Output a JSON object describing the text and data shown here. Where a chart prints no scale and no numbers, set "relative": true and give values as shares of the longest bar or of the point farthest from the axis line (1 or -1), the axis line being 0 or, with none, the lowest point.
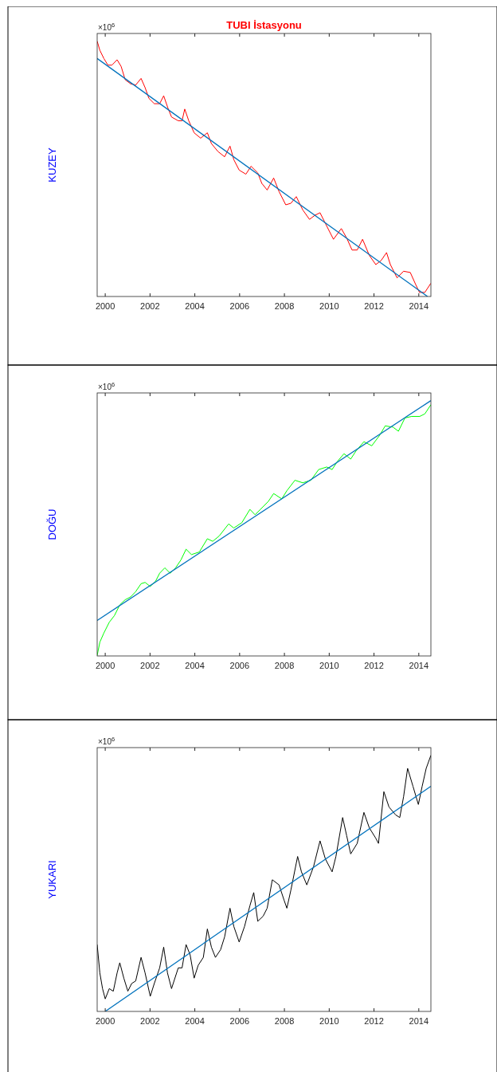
{
  "chart_data": [
    {
      "type": "line",
      "title": "TUBI İstasyonu",
      "ylabel": "KUZEY",
      "annotations": [
        "×10$^{6}$"
      ],
      "relative": true,
      "xlim": [
        1999.64,
        2014.54
      ],
      "xticks": [
        2000,
        2002,
        2004,
        2006,
        2008,
        2010,
        2012,
        2014
      ],
      "series": [
        {
          "color": "#ff0000",
          "x": [
            1999.64,
            1999.76,
            1999.94,
            2000.12,
            2000.3,
            2000.53,
            2000.71,
            2000.89,
            2001.13,
            2001.36,
            2001.6,
            2001.78,
            2001.95,
            2002.19,
            2002.43,
            2002.61,
            2002.79,
            2002.96,
            2003.26,
            2003.43,
            2003.55,
            2003.73,
            2003.97,
            2004.26,
            2004.56,
            2004.74,
            2005.03,
            2005.33,
            2005.57,
            2005.74,
            2005.98,
            2006.28,
            2006.51,
            2006.81,
            2006.99,
            2007.23,
            2007.52,
            2007.76,
            2008.06,
            2008.29,
            2008.53,
            2008.82,
            2009.12,
            2009.36,
            2009.59,
            2009.83,
            2010.19,
            2010.54,
            2010.78,
            2011.02,
            2011.25,
            2011.49,
            2011.79,
            2012.08,
            2012.32,
            2012.56,
            2012.73,
            2013.03,
            2013.32,
            2013.62,
            2013.86,
            2014.03,
            2014.27,
            2014.54
          ],
          "values": [
            1,
            0.964,
            0.932,
            0.906,
            0.906,
            0.927,
            0.901,
            0.849,
            0.833,
            0.828,
            0.854,
            0.818,
            0.776,
            0.755,
            0.755,
            0.786,
            0.74,
            0.703,
            0.688,
            0.688,
            0.734,
            0.688,
            0.641,
            0.62,
            0.641,
            0.599,
            0.568,
            0.547,
            0.589,
            0.536,
            0.495,
            0.479,
            0.51,
            0.484,
            0.443,
            0.417,
            0.464,
            0.411,
            0.359,
            0.365,
            0.391,
            0.339,
            0.302,
            0.318,
            0.328,
            0.286,
            0.224,
            0.266,
            0.229,
            0.182,
            0.182,
            0.224,
            0.161,
            0.125,
            0.141,
            0.172,
            0.125,
            0.073,
            0.099,
            0.094,
            0.047,
            0.016,
            0.016,
            0.052
          ]
        },
        {
          "color": "#0072bd",
          "x": [
            1999.64,
            2014.39
          ],
          "values": [
            0.932,
            0
          ]
        }
      ]
    },
    {
      "type": "line",
      "ylabel": "DOĞU",
      "annotations": [
        "×10$^{6}$"
      ],
      "relative": true,
      "xlim": [
        1999.64,
        2014.54
      ],
      "xticks": [
        2000,
        2002,
        2004,
        2006,
        2008,
        2010,
        2012,
        2014
      ],
      "series": [
        {
          "color": "#00ff00",
          "x": [
            1999.64,
            1999.76,
            1999.94,
            2000.18,
            2000.41,
            2000.65,
            2000.89,
            2001.13,
            2001.36,
            2001.6,
            2001.78,
            2002.01,
            2002.25,
            2002.43,
            2002.66,
            2002.9,
            2003.14,
            2003.38,
            2003.61,
            2003.85,
            2004.2,
            2004.56,
            2004.8,
            2005.09,
            2005.51,
            2005.74,
            2006.1,
            2006.46,
            2006.69,
            2006.93,
            2007.28,
            2007.52,
            2007.88,
            2008.11,
            2008.47,
            2008.82,
            2009.18,
            2009.53,
            2009.89,
            2010.13,
            2010.36,
            2010.66,
            2010.96,
            2011.19,
            2011.55,
            2011.9,
            2012.26,
            2012.5,
            2012.85,
            2013.09,
            2013.38,
            2013.68,
            2014.04,
            2014.27,
            2014.54
          ],
          "values": [
            0.002,
            0.054,
            0.09,
            0.132,
            0.158,
            0.2,
            0.22,
            0.231,
            0.252,
            0.283,
            0.288,
            0.272,
            0.293,
            0.324,
            0.345,
            0.324,
            0.345,
            0.376,
            0.418,
            0.397,
            0.407,
            0.459,
            0.449,
            0.47,
            0.517,
            0.501,
            0.522,
            0.574,
            0.553,
            0.574,
            0.605,
            0.636,
            0.615,
            0.647,
            0.688,
            0.678,
            0.688,
            0.73,
            0.74,
            0.73,
            0.761,
            0.792,
            0.771,
            0.802,
            0.839,
            0.823,
            0.865,
            0.901,
            0.896,
            0.88,
            0.932,
            0.938,
            0.938,
            0.948,
            0.984
          ]
        },
        {
          "color": "#0072bd",
          "x": [
            1999.64,
            2014.54
          ],
          "values": [
            0.139,
            1
          ]
        }
      ]
    },
    {
      "type": "line",
      "ylabel": "YUKARI",
      "annotations": [
        "×10$^{6}$"
      ],
      "relative": true,
      "xlim": [
        1999.64,
        2014.54
      ],
      "xticks": [
        2000,
        2002,
        2004,
        2006,
        2008,
        2010,
        2012,
        2014
      ],
      "series": [
        {
          "color": "#000000",
          "x": [
            1999.64,
            1999.76,
            1999.88,
            2000.0,
            2000.18,
            2000.36,
            2000.53,
            2000.65,
            2000.83,
            2001.01,
            2001.18,
            2001.36,
            2001.6,
            2001.78,
            2002.01,
            2002.19,
            2002.43,
            2002.61,
            2002.78,
            2002.96,
            2003.26,
            2003.43,
            2003.61,
            2003.79,
            2003.97,
            2004.15,
            2004.38,
            2004.56,
            2004.74,
            2004.92,
            2005.15,
            2005.33,
            2005.57,
            2005.74,
            2005.98,
            2006.22,
            2006.46,
            2006.63,
            2006.81,
            2007.05,
            2007.23,
            2007.46,
            2007.76,
            2007.99,
            2008.11,
            2008.29,
            2008.59,
            2008.76,
            2009.0,
            2009.3,
            2009.59,
            2009.83,
            2010.13,
            2010.3,
            2010.6,
            2010.78,
            2010.96,
            2011.25,
            2011.55,
            2011.79,
            2012.08,
            2012.2,
            2012.44,
            2012.67,
            2012.97,
            2013.15,
            2013.32,
            2013.5,
            2013.74,
            2013.98,
            2014.15,
            2014.33,
            2014.54
          ],
          "values": [
            0.261,
            0.15,
            0.089,
            0.049,
            0.089,
            0.079,
            0.15,
            0.19,
            0.13,
            0.079,
            0.109,
            0.119,
            0.211,
            0.15,
            0.059,
            0.109,
            0.17,
            0.251,
            0.15,
            0.089,
            0.17,
            0.17,
            0.261,
            0.221,
            0.13,
            0.18,
            0.211,
            0.322,
            0.251,
            0.211,
            0.241,
            0.291,
            0.403,
            0.332,
            0.271,
            0.332,
            0.413,
            0.464,
            0.352,
            0.372,
            0.403,
            0.514,
            0.494,
            0.433,
            0.403,
            0.474,
            0.605,
            0.545,
            0.494,
            0.565,
            0.666,
            0.595,
            0.545,
            0.605,
            0.757,
            0.686,
            0.615,
            0.656,
            0.777,
            0.717,
            0.676,
            0.656,
            0.858,
            0.798,
            0.767,
            0.757,
            0.838,
            0.949,
            0.879,
            0.808,
            0.879,
            0.949,
            1
          ]
        },
        {
          "color": "#0072bd",
          "x": [
            2000.0,
            2014.54
          ],
          "values": [
            0,
            0.879
          ]
        }
      ]
    }
  ]
}
